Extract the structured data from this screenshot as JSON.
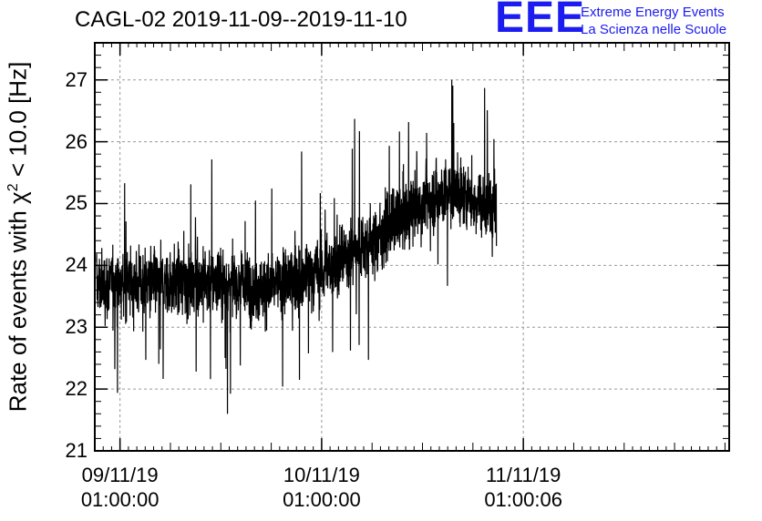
{
  "title": "CAGL-02 2019-11-09--2019-11-10",
  "logo": {
    "mark": "EEE",
    "line1": "Extreme Energy Events",
    "line2": "La Scienza nelle Scuole",
    "color": "#1c1cf0"
  },
  "chart_data": {
    "type": "line",
    "title": "CAGL-02 2019-11-09--2019-11-10",
    "ylabel_pre": "Rate of events with χ",
    "ylabel_sup": "2",
    "ylabel_post": " < 10.0 [Hz]",
    "xlabel": "",
    "ylim": [
      21,
      27.6
    ],
    "xlim_hours": [
      -3,
      72.5
    ],
    "yticks": [
      "21",
      "22",
      "23",
      "24",
      "25",
      "26",
      "27"
    ],
    "xticks": [
      {
        "hour": 0,
        "date": "09/11/19",
        "time": "01:00:00"
      },
      {
        "hour": 24,
        "date": "10/11/19",
        "time": "01:00:00"
      },
      {
        "hour": 48,
        "date": "11/11/19",
        "time": "01:00:06"
      }
    ],
    "grid": true,
    "series": [
      {
        "color": "#000000",
        "start_hour": -2.8,
        "end_hour": 44.8,
        "trend": [
          {
            "hour": -2.8,
            "mean": 23.7
          },
          {
            "hour": 10,
            "mean": 23.75
          },
          {
            "hour": 18,
            "mean": 23.65
          },
          {
            "hour": 24,
            "mean": 23.9
          },
          {
            "hour": 30,
            "mean": 24.4
          },
          {
            "hour": 34,
            "mean": 24.8
          },
          {
            "hour": 37,
            "mean": 25.1
          },
          {
            "hour": 40,
            "mean": 25.2
          },
          {
            "hour": 44.8,
            "mean": 24.9
          }
        ],
        "y_min": 21.55,
        "y_max": 27.0
      }
    ]
  }
}
